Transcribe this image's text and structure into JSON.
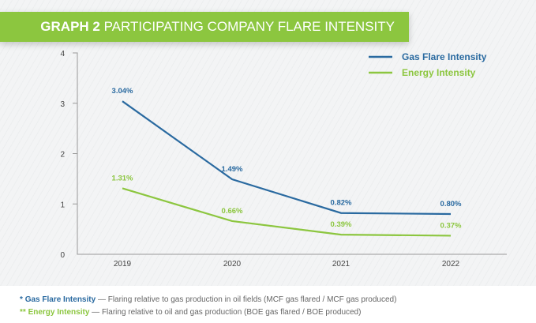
{
  "title": {
    "prefix": "GRAPH 2",
    "text": "PARTICIPATING COMPANY FLARE INTENSITY"
  },
  "chart_data": {
    "type": "line",
    "categories": [
      "2019",
      "2020",
      "2021",
      "2022"
    ],
    "ylim": [
      0,
      4
    ],
    "yticks": [
      "0",
      "1",
      "2",
      "3",
      "4"
    ],
    "grid": false,
    "legend": "top-right",
    "series": [
      {
        "name": "Gas Flare Intensity",
        "color": "#2a6aa0",
        "values": [
          3.04,
          1.49,
          0.82,
          0.8
        ],
        "labels": [
          "3.04%",
          "1.49%",
          "0.82%",
          "0.80%"
        ]
      },
      {
        "name": "Energy Intensity",
        "color": "#8cc63f",
        "values": [
          1.31,
          0.66,
          0.39,
          0.37
        ],
        "labels": [
          "1.31%",
          "0.66%",
          "0.39%",
          "0.37%"
        ]
      }
    ]
  },
  "notes": [
    {
      "marker": "*",
      "term": "Gas Flare Intensity",
      "text": " — Flaring relative to gas production in oil fields (MCF gas flared / MCF gas produced)",
      "color": "#2a6aa0"
    },
    {
      "marker": "**",
      "term": "Energy Intensity",
      "text": " — Flaring relative to oil and gas production (BOE gas flared / BOE produced)",
      "color": "#8cc63f"
    }
  ]
}
